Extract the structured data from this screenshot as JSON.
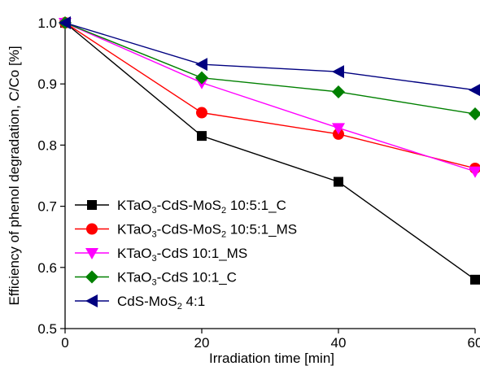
{
  "chart_data": {
    "type": "line",
    "xlabel": "Irradiation time [min]",
    "ylabel": "Efficiency of phenol degradation, C/Co [%]",
    "xlim": [
      0,
      60
    ],
    "ylim": [
      0.5,
      1.0
    ],
    "x_ticks": [
      "0",
      "20",
      "40",
      "60"
    ],
    "y_ticks": [
      "0.5",
      "0.6",
      "0.7",
      "0.8",
      "0.9",
      "1.0"
    ],
    "grid": false,
    "legend_position": "bottom-left",
    "x": [
      0,
      20,
      40,
      60
    ],
    "series": [
      {
        "name": "KTaO3-CdS-MoS2 10:5:1_C",
        "legend_parts": [
          [
            "KTaO",
            ""
          ],
          [
            "3",
            "sub"
          ],
          [
            "-CdS-MoS",
            ""
          ],
          [
            "2",
            "sub"
          ],
          [
            " 10:5:1_C",
            ""
          ]
        ],
        "color": "#000000",
        "marker": "square",
        "values": [
          1.0,
          0.815,
          0.74,
          0.58
        ]
      },
      {
        "name": "KTaO3-CdS-MoS2 10:5:1_MS",
        "legend_parts": [
          [
            "KTaO",
            ""
          ],
          [
            "3",
            "sub"
          ],
          [
            "-CdS-MoS",
            ""
          ],
          [
            "2",
            "sub"
          ],
          [
            " 10:5:1_MS",
            ""
          ]
        ],
        "color": "#ff0000",
        "marker": "circle",
        "values": [
          1.0,
          0.853,
          0.818,
          0.762
        ]
      },
      {
        "name": "KTaO3-CdS 10:1_MS",
        "legend_parts": [
          [
            "KTaO",
            ""
          ],
          [
            "3",
            "sub"
          ],
          [
            "-CdS 10:1_MS",
            ""
          ]
        ],
        "color": "#ff00ff",
        "marker": "triangle-down",
        "values": [
          1.0,
          0.902,
          0.828,
          0.757
        ]
      },
      {
        "name": "KTaO3-CdS 10:1_C",
        "legend_parts": [
          [
            "KTaO",
            ""
          ],
          [
            "3",
            "sub"
          ],
          [
            "-CdS 10:1_C",
            ""
          ]
        ],
        "color": "#008000",
        "marker": "diamond",
        "values": [
          1.0,
          0.91,
          0.887,
          0.851
        ]
      },
      {
        "name": "CdS-MoS2 4:1",
        "legend_parts": [
          [
            "CdS-MoS",
            ""
          ],
          [
            "2",
            "sub"
          ],
          [
            " 4:1",
            ""
          ]
        ],
        "color": "#000080",
        "marker": "triangle-left",
        "values": [
          1.0,
          0.932,
          0.92,
          0.89
        ]
      }
    ]
  }
}
